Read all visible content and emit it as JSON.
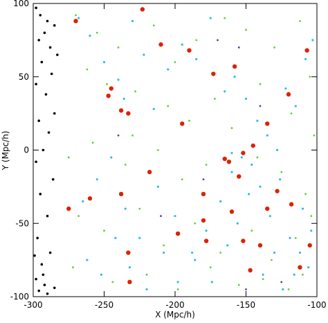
{
  "chart_data": {
    "type": "scatter",
    "x_label": "X (Mpc/h)",
    "y_label": "Y (Mpc/h)",
    "xlim": [
      -300,
      -100
    ],
    "ylim": [
      -100,
      100
    ],
    "xticks": [
      -300,
      -250,
      -200,
      -150,
      -100
    ],
    "yticks": [
      -100,
      -50,
      0,
      50,
      100
    ],
    "series": [
      {
        "color": "#000000",
        "x": [
          -298,
          -295,
          -290,
          -285,
          -292,
          -296,
          -288,
          -283,
          -294,
          -287,
          -298,
          -291,
          -285,
          -296,
          -289,
          -293,
          -298,
          -286,
          -295,
          -290,
          -297,
          -288,
          -294,
          -298,
          -292,
          -296,
          -290,
          -285,
          -293,
          -299
        ],
        "y": [
          97,
          92,
          88,
          85,
          80,
          75,
          70,
          65,
          60,
          52,
          45,
          38,
          25,
          20,
          12,
          0,
          -8,
          -20,
          -30,
          -45,
          -60,
          -70,
          -78,
          -88,
          -92,
          -96,
          -98,
          -94,
          -85,
          -72
        ]
      },
      {
        "color": "#66cc33",
        "x": [
          -270,
          -255,
          -240,
          -215,
          -200,
          -185,
          -165,
          -150,
          -130,
          -112,
          -105,
          -262,
          -248,
          -228,
          -205,
          -190,
          -172,
          -140,
          -118,
          -102,
          -275,
          -258,
          -235,
          -212,
          -195,
          -178,
          -160,
          -142,
          -125,
          -108,
          -268,
          -250,
          -225,
          -208,
          -186,
          -168,
          -146,
          -132,
          -115,
          -104,
          -272,
          -244,
          -220,
          -198,
          -175,
          -155,
          -138,
          -120,
          -110,
          -230
        ],
        "y": [
          92,
          80,
          70,
          85,
          60,
          75,
          90,
          82,
          70,
          88,
          50,
          55,
          45,
          40,
          30,
          20,
          35,
          45,
          25,
          10,
          -5,
          5,
          -10,
          0,
          -20,
          -10,
          15,
          -5,
          -15,
          -30,
          -45,
          -55,
          -40,
          -65,
          -50,
          -70,
          -55,
          -75,
          -60,
          -45,
          -80,
          -90,
          -85,
          -95,
          -80,
          -92,
          -88,
          -95,
          -85,
          10
        ]
      },
      {
        "color": "#33bbdd",
        "x": [
          -268,
          -260,
          -250,
          -240,
          -230,
          -222,
          -215,
          -205,
          -195,
          -185,
          -175,
          -165,
          -158,
          -150,
          -142,
          -135,
          -128,
          -122,
          -115,
          -108,
          -103,
          -265,
          -255,
          -245,
          -235,
          -225,
          -212,
          -200,
          -188,
          -178,
          -168,
          -160,
          -153,
          -146,
          -140,
          -133,
          -126,
          -119,
          -112,
          -106,
          -262,
          -252,
          -242,
          -232,
          -220,
          -208,
          -198,
          -186,
          -174,
          -163,
          -156,
          -148,
          -138,
          -130,
          -124,
          -116,
          -110,
          -104,
          -236,
          -160
        ],
        "y": [
          90,
          78,
          60,
          48,
          88,
          65,
          28,
          55,
          72,
          62,
          90,
          40,
          50,
          35,
          20,
          10,
          0,
          42,
          30,
          62,
          75,
          -35,
          -20,
          -5,
          -40,
          -60,
          -25,
          -45,
          -70,
          -55,
          -35,
          -15,
          -5,
          -10,
          -25,
          -45,
          -20,
          -60,
          -70,
          -80,
          -75,
          -85,
          -60,
          -80,
          -95,
          -70,
          -90,
          -75,
          -90,
          -65,
          -50,
          -30,
          -85,
          -70,
          -95,
          -85,
          -40,
          -55,
          35,
          -2
        ]
      },
      {
        "color": "#6633aa",
        "x": [
          -170,
          -155,
          -140,
          -180,
          -125,
          -210,
          -150,
          -240
        ],
        "y": [
          75,
          70,
          30,
          -20,
          -90,
          -45,
          -95,
          10
        ]
      },
      {
        "color": "#dd2200",
        "x": [
          -223,
          -270,
          -120,
          -135,
          -152,
          -145,
          -165,
          -128,
          -233,
          -152,
          -198,
          -178,
          -147,
          -112,
          -238,
          -232,
          -158,
          -218,
          -155,
          -247,
          -245,
          -233,
          -238,
          -107,
          -260,
          -210,
          -190,
          -173,
          -135,
          -118,
          -180,
          -140,
          -195,
          -180,
          -105,
          -160,
          -275,
          -162
        ],
        "y": [
          96,
          88,
          38,
          18,
          -2,
          3,
          -6,
          -28,
          -70,
          -62,
          -57,
          -62,
          -82,
          -80,
          -30,
          -90,
          57,
          -15,
          -18,
          37,
          42,
          25,
          27,
          68,
          -33,
          72,
          68,
          52,
          -40,
          -37,
          -48,
          -65,
          18,
          -30,
          -65,
          -42,
          -40,
          -8
        ]
      }
    ]
  }
}
